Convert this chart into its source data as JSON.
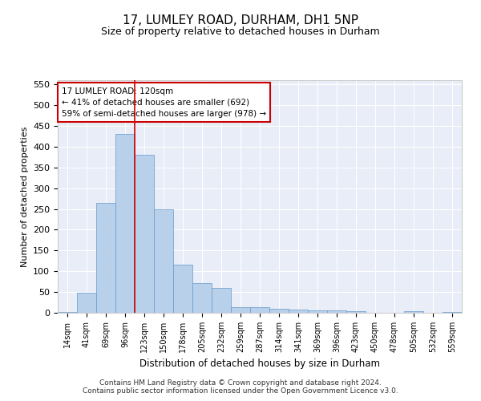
{
  "title": "17, LUMLEY ROAD, DURHAM, DH1 5NP",
  "subtitle": "Size of property relative to detached houses in Durham",
  "xlabel": "Distribution of detached houses by size in Durham",
  "ylabel": "Number of detached properties",
  "categories": [
    "14sqm",
    "41sqm",
    "69sqm",
    "96sqm",
    "123sqm",
    "150sqm",
    "178sqm",
    "205sqm",
    "232sqm",
    "259sqm",
    "287sqm",
    "314sqm",
    "341sqm",
    "369sqm",
    "396sqm",
    "423sqm",
    "450sqm",
    "478sqm",
    "505sqm",
    "532sqm",
    "559sqm"
  ],
  "values": [
    2,
    48,
    265,
    430,
    380,
    250,
    115,
    72,
    60,
    14,
    13,
    10,
    7,
    6,
    5,
    4,
    0,
    0,
    4,
    0,
    2
  ],
  "bar_color": "#b8d0ea",
  "bar_edge_color": "#6699cc",
  "vline_index": 3.5,
  "vline_color": "#cc0000",
  "annotation_text": "17 LUMLEY ROAD: 120sqm\n← 41% of detached houses are smaller (692)\n59% of semi-detached houses are larger (978) →",
  "annotation_box_color": "#cc0000",
  "ylim": [
    0,
    560
  ],
  "yticks": [
    0,
    50,
    100,
    150,
    200,
    250,
    300,
    350,
    400,
    450,
    500,
    550
  ],
  "fig_bg_color": "#ffffff",
  "plot_bg_color": "#e8edf8",
  "grid_color": "#ffffff",
  "footer_line1": "Contains HM Land Registry data © Crown copyright and database right 2024.",
  "footer_line2": "Contains public sector information licensed under the Open Government Licence v3.0."
}
